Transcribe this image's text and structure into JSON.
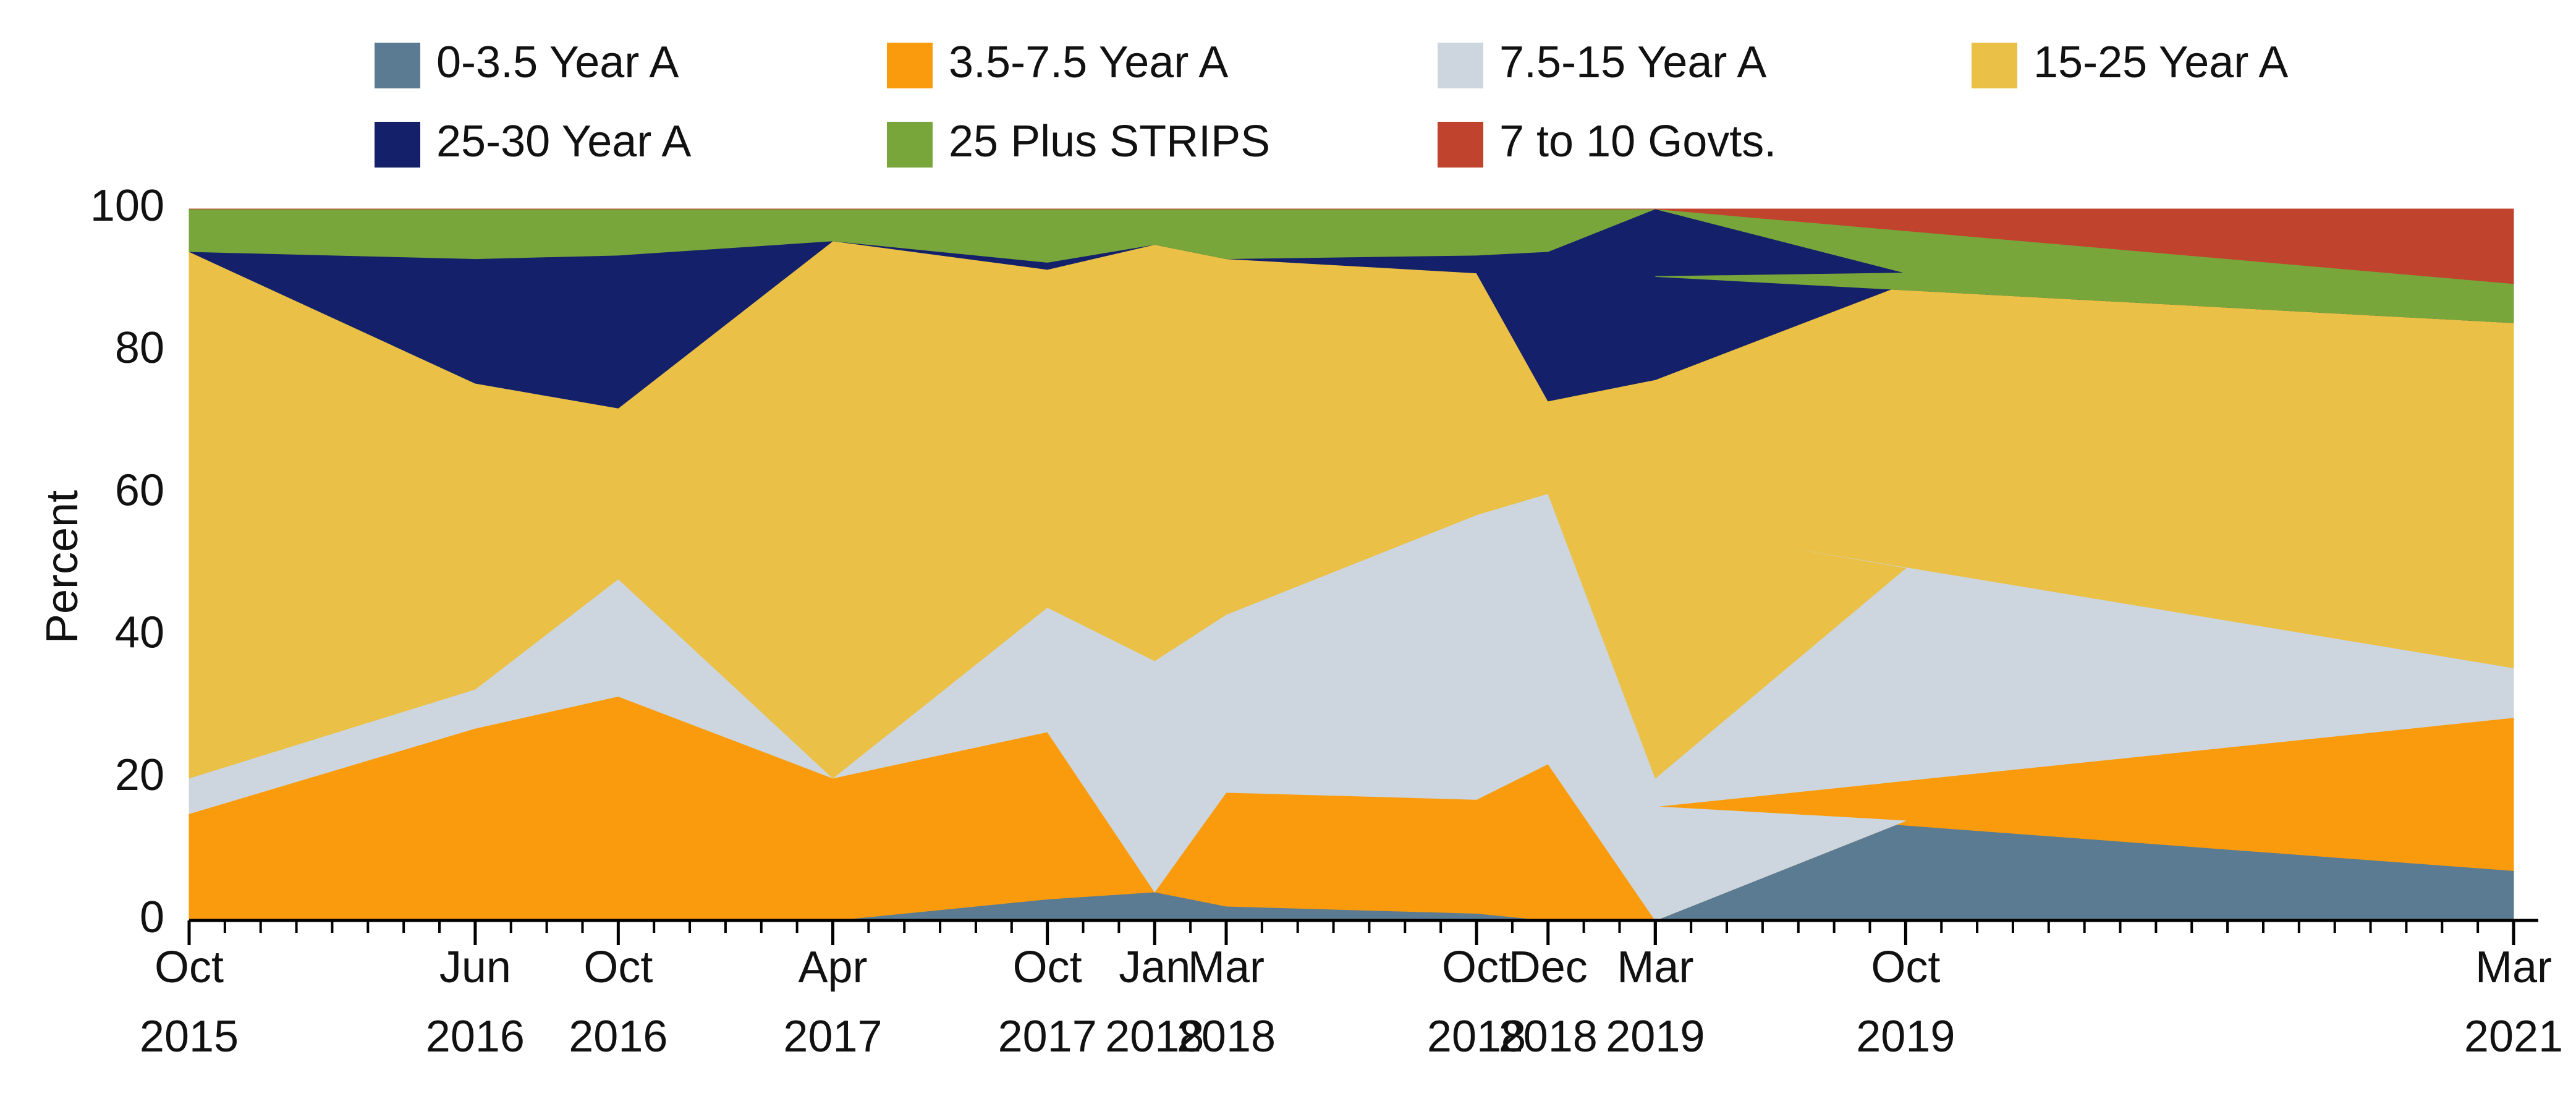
{
  "chart_data": {
    "type": "stacked-area",
    "x": [
      "Oct 2015",
      "Jun 2016",
      "Oct 2016",
      "Apr 2017",
      "Oct 2017",
      "Jan 2018",
      "Mar 2018",
      "Oct 2018",
      "Dec 2018",
      "Mar 2019",
      "Oct 2019",
      "Mar 2019",
      "Mar 2021"
    ],
    "series": [
      {
        "name": "0-3.5 Year A",
        "color": "#5b7b93",
        "values": [
          0,
          0,
          0,
          0,
          3,
          4,
          2,
          1,
          0,
          0,
          14,
          16,
          7
        ]
      },
      {
        "name": "3.5-7.5 Year A",
        "color": "#f99b0c",
        "values": [
          15,
          27,
          31.5,
          20,
          23.5,
          0,
          16,
          16,
          22,
          0,
          0,
          0,
          21.5
        ]
      },
      {
        "name": "7.5-15 Year A",
        "color": "#cdd6de",
        "values": [
          5,
          5.5,
          16.5,
          0,
          17.5,
          32.5,
          25,
          40,
          38,
          20,
          35.5,
          39.5,
          7
        ]
      },
      {
        "name": "15-25 Year A",
        "color": "#eac046",
        "values": [
          74,
          43,
          24,
          75.5,
          47.5,
          58.5,
          50,
          34,
          13,
          56,
          40,
          35,
          48.5
        ]
      },
      {
        "name": "25-30 Year A",
        "color": "#14216a",
        "values": [
          0,
          17.5,
          21.5,
          0,
          1,
          0,
          0,
          2.5,
          21,
          24,
          1.5,
          0,
          0
        ]
      },
      {
        "name": "25 Plus STRIPS",
        "color": "#78a63a",
        "values": [
          6,
          7,
          6.5,
          4.5,
          7.5,
          5,
          7,
          6.5,
          6,
          0,
          9,
          9.5,
          5.5
        ]
      },
      {
        "name": "7 to 10 Govts.",
        "color": "#c0432e",
        "values": [
          0,
          0,
          0,
          0,
          0,
          0,
          0,
          0,
          0,
          0,
          0,
          0,
          10.5
        ]
      }
    ],
    "ylabel": "Percent",
    "ylim": [
      0,
      100
    ],
    "yticks": [
      0,
      20,
      40,
      60,
      80,
      100
    ],
    "grid": false,
    "legend": "top"
  }
}
